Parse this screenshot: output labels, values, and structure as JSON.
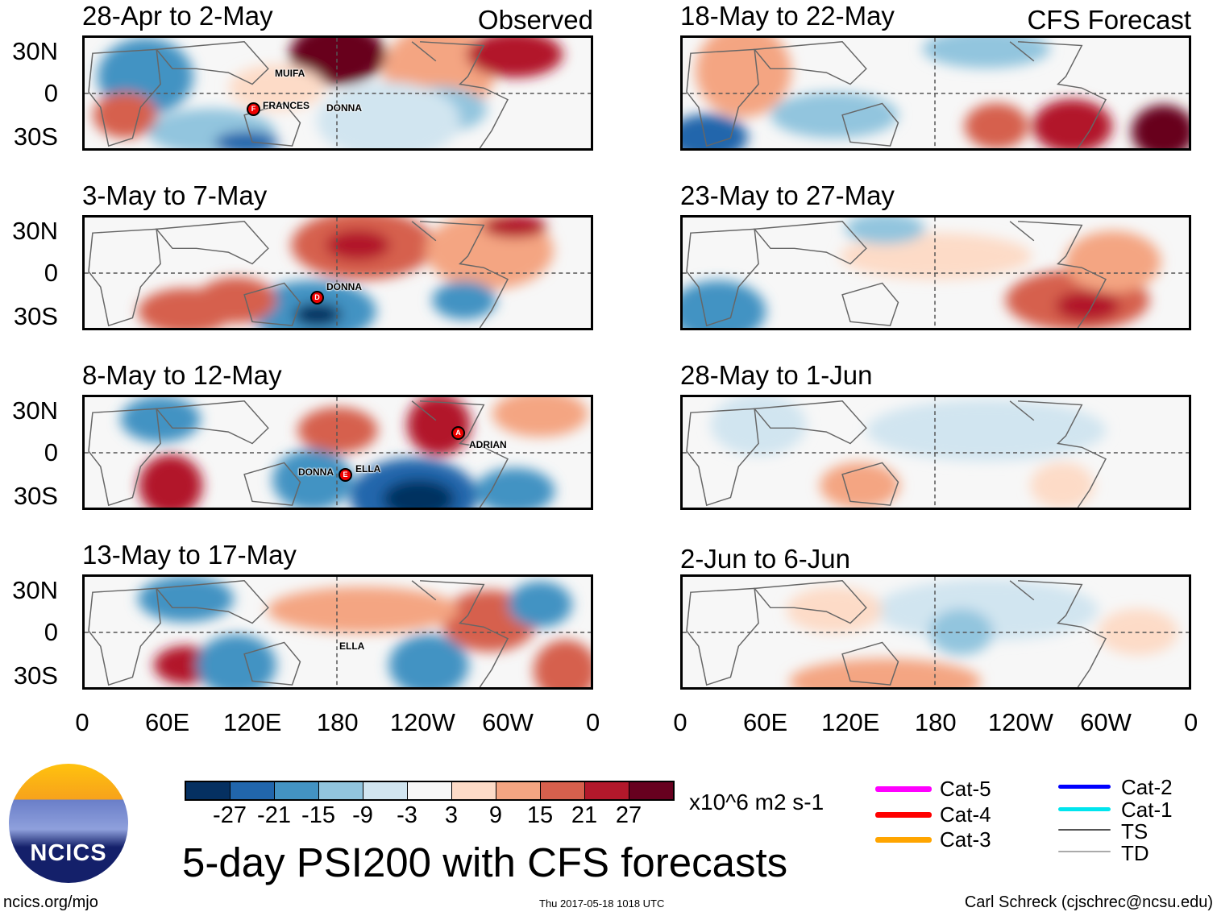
{
  "panels": [
    {
      "title": "28-Apr to 2-May",
      "tag": "Observed",
      "storms": [
        {
          "name": "MUIFA"
        },
        {
          "name": "FRANCES",
          "marker": "F"
        },
        {
          "name": "DONNA"
        }
      ]
    },
    {
      "title": "3-May to 7-May",
      "storms": [
        {
          "name": "DONNA",
          "marker": "D"
        }
      ]
    },
    {
      "title": "8-May to 12-May",
      "storms": [
        {
          "name": "ADRIAN",
          "marker": "A"
        },
        {
          "name": "DONNA"
        },
        {
          "name": "ELLA",
          "marker": "E"
        }
      ]
    },
    {
      "title": "13-May to 17-May",
      "storms": [
        {
          "name": "ELLA"
        }
      ]
    },
    {
      "title": "18-May to 22-May",
      "tag": "CFS Forecast",
      "storms": []
    },
    {
      "title": "23-May to 27-May",
      "storms": []
    },
    {
      "title": "28-May to 1-Jun",
      "storms": []
    },
    {
      "title": "2-Jun to 6-Jun",
      "storms": []
    }
  ],
  "lat_labels": [
    "30N",
    "0",
    "30S"
  ],
  "lon_labels": [
    "0",
    "60E",
    "120E",
    "180",
    "120W",
    "60W",
    "0"
  ],
  "colorbar": {
    "colors": [
      "#053061",
      "#2166ac",
      "#4393c3",
      "#92c5de",
      "#d1e5f0",
      "#f7f7f7",
      "#fddbc7",
      "#f4a582",
      "#d6604d",
      "#b2182b",
      "#67001f"
    ],
    "labels": [
      "-27",
      "-21",
      "-15",
      "-9",
      "-3",
      "3",
      "9",
      "15",
      "21",
      "27"
    ],
    "units": "x10^6 m2 s-1"
  },
  "legend": [
    {
      "label": "Cat-5",
      "color": "#ff00ff"
    },
    {
      "label": "Cat-4",
      "color": "#ff0000"
    },
    {
      "label": "Cat-3",
      "color": "#ffa500"
    },
    {
      "label": "Cat-2",
      "color": "#0000ff"
    },
    {
      "label": "Cat-1",
      "color": "#00e5ee"
    },
    {
      "label": "TS",
      "color": "#555555"
    },
    {
      "label": "TD",
      "color": "#aaaaaa"
    }
  ],
  "logo_text": "NCICS",
  "main_title": "5-day PSI200 with CFS forecasts",
  "footer": {
    "left": "ncics.org/mjo",
    "center": "Thu 2017-05-18 1018 UTC",
    "right": "Carl Schreck (cjschrec@ncsu.edu)"
  }
}
